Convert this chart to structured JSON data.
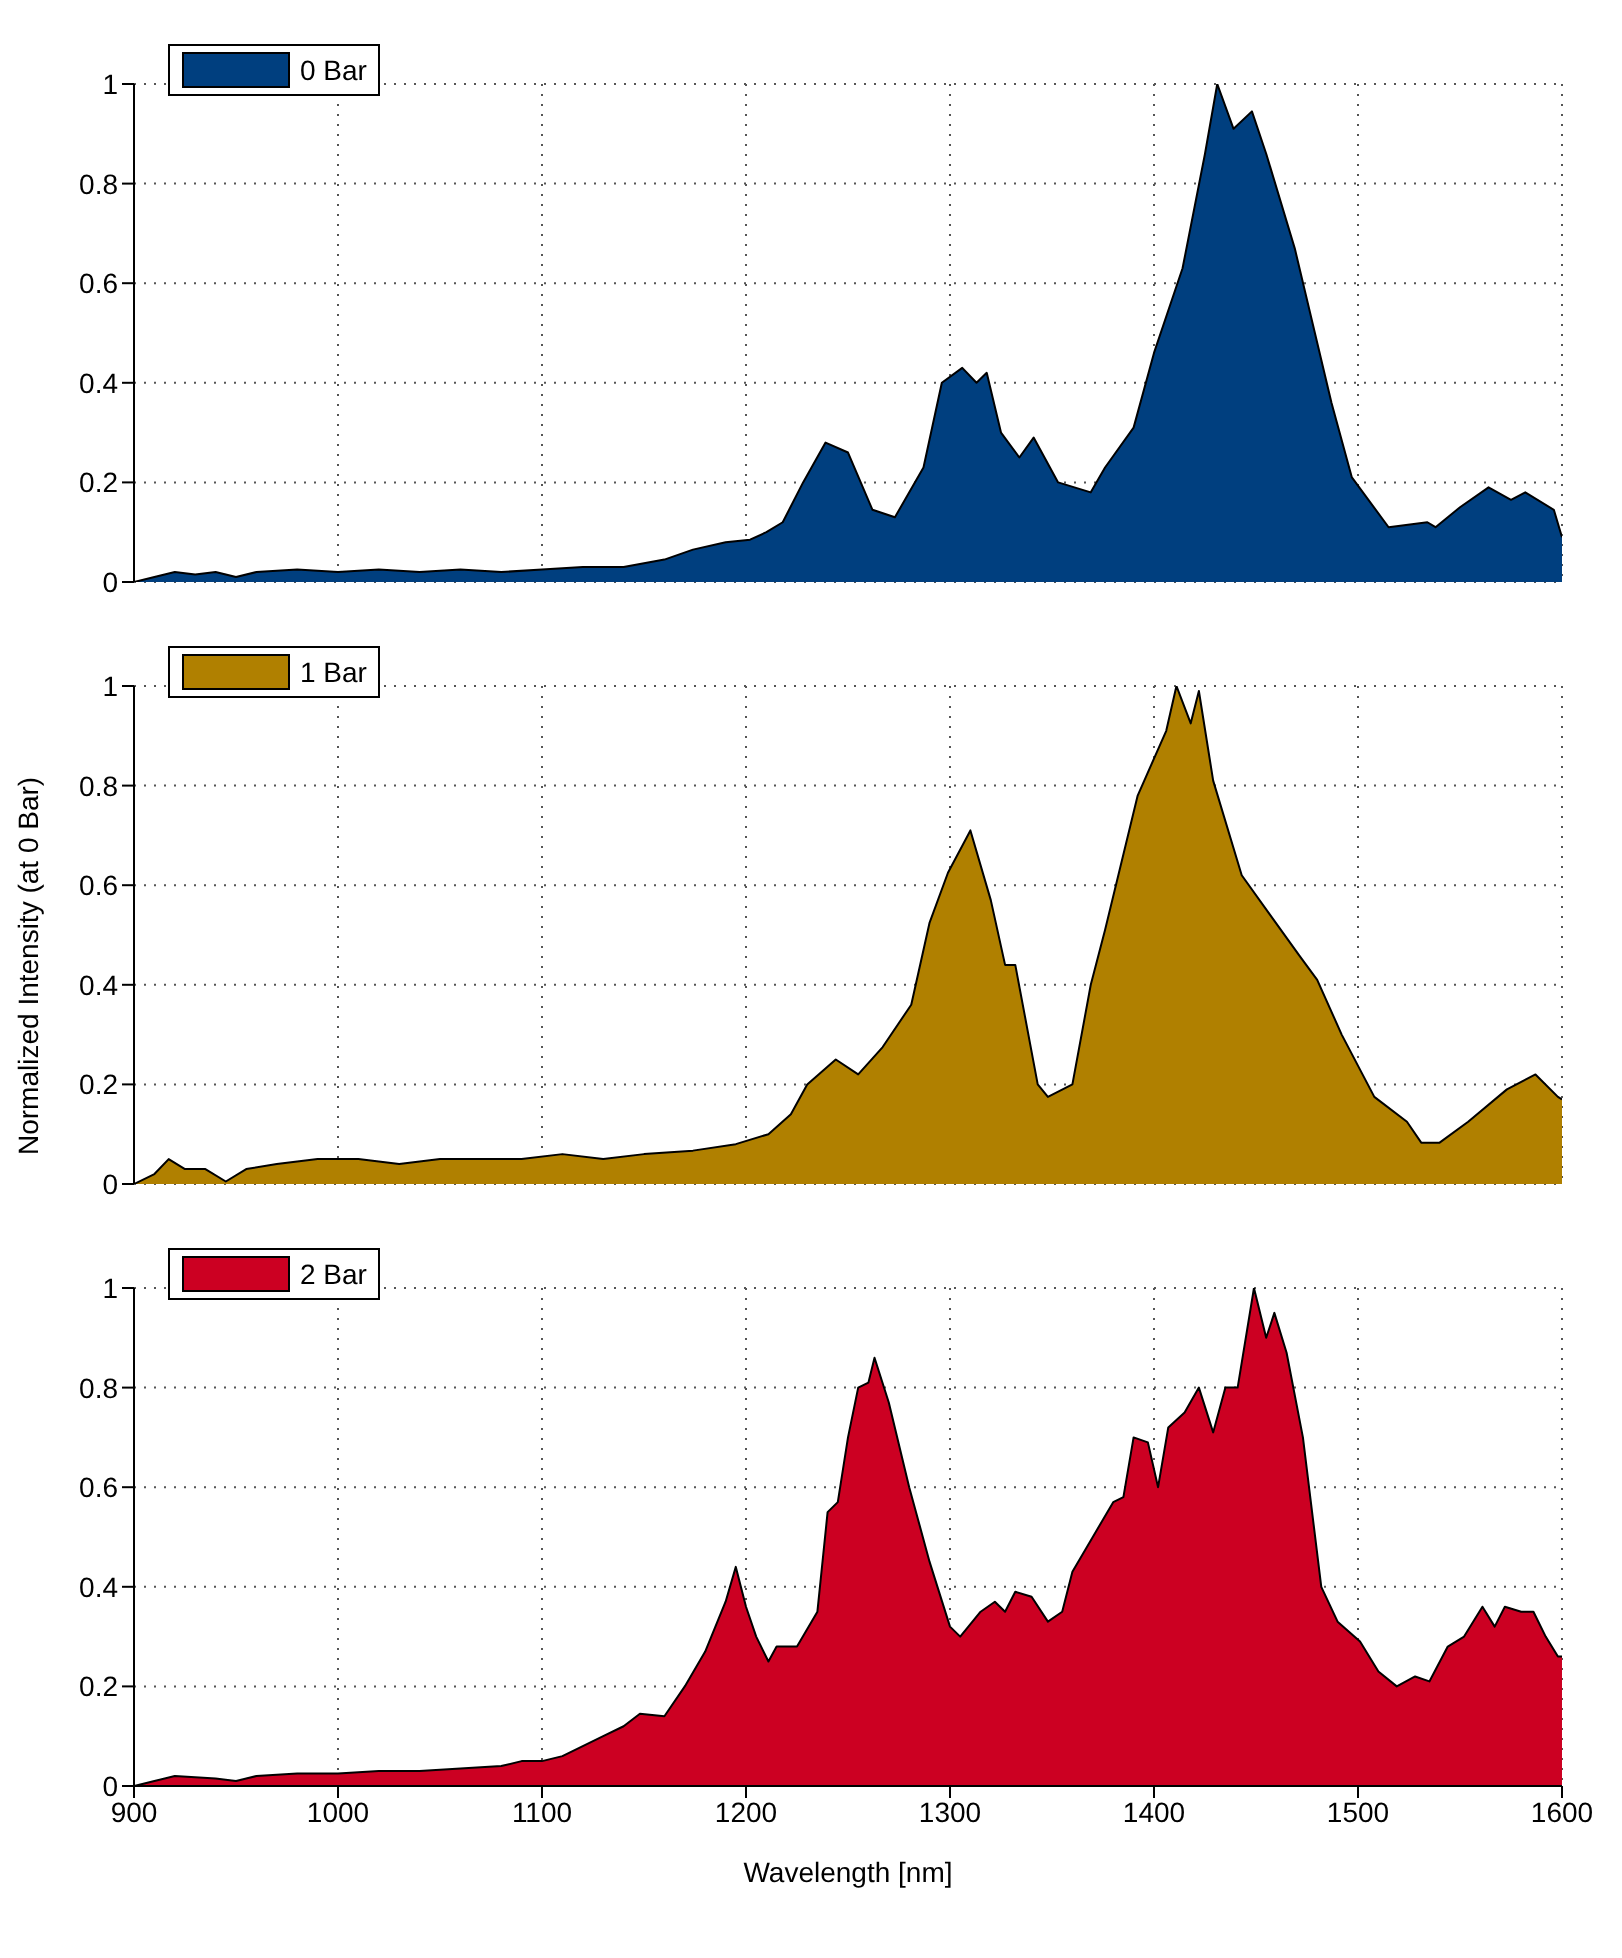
{
  "chart_data": [
    {
      "type": "area",
      "xlim": [
        900,
        1600
      ],
      "xticks": [
        900,
        1000,
        1100,
        1200,
        1300,
        1400,
        1500,
        1600
      ],
      "ylim": [
        0,
        1
      ],
      "yticks": [
        0,
        0.2,
        0.4,
        0.6,
        0.8,
        1
      ],
      "grid": true,
      "legend": "top left",
      "tick_labels": "y",
      "x": [
        900,
        910,
        920,
        930,
        940,
        950,
        960,
        980,
        1000,
        1020,
        1040,
        1060,
        1080,
        1100,
        1120,
        1140,
        1160,
        1174,
        1190,
        1202,
        1210,
        1218,
        1228,
        1239,
        1250,
        1262,
        1273,
        1287,
        1296,
        1306,
        1313,
        1318,
        1325,
        1334,
        1341,
        1353,
        1369,
        1376,
        1390,
        1400,
        1414,
        1425,
        1431,
        1439,
        1448,
        1455,
        1469,
        1487,
        1497,
        1515,
        1534,
        1538,
        1550,
        1564,
        1575,
        1582,
        1596,
        1600
      ],
      "series": [
        {
          "name": "0 Bar",
          "color": "#003f7f",
          "values": [
            0,
            0.01,
            0.02,
            0.015,
            0.02,
            0.01,
            0.02,
            0.025,
            0.02,
            0.025,
            0.02,
            0.025,
            0.02,
            0.025,
            0.03,
            0.03,
            0.045,
            0.065,
            0.08,
            0.085,
            0.1,
            0.12,
            0.2,
            0.28,
            0.26,
            0.145,
            0.13,
            0.23,
            0.4,
            0.43,
            0.4,
            0.42,
            0.3,
            0.25,
            0.29,
            0.2,
            0.18,
            0.23,
            0.31,
            0.46,
            0.63,
            0.86,
            1,
            0.91,
            0.945,
            0.86,
            0.67,
            0.36,
            0.21,
            0.11,
            0.12,
            0.11,
            0.15,
            0.19,
            0.165,
            0.18,
            0.145,
            0.09
          ]
        }
      ]
    },
    {
      "type": "area",
      "xlim": [
        900,
        1600
      ],
      "xticks": [
        900,
        1000,
        1100,
        1200,
        1300,
        1400,
        1500,
        1600
      ],
      "ylim": [
        0,
        1
      ],
      "yticks": [
        0,
        0.2,
        0.4,
        0.6,
        0.8,
        1
      ],
      "grid": true,
      "legend": "top left",
      "tick_labels": "y",
      "ylabel": "Normalized Intensity (at 0 Bar)",
      "x": [
        900,
        910,
        917,
        925,
        935,
        945,
        955,
        970,
        990,
        1010,
        1030,
        1050,
        1070,
        1090,
        1110,
        1130,
        1150,
        1174,
        1195,
        1211,
        1222,
        1230,
        1244,
        1255,
        1267,
        1281,
        1290,
        1299,
        1310,
        1320,
        1327,
        1332,
        1343,
        1348,
        1360,
        1369,
        1376,
        1392,
        1406,
        1411,
        1418,
        1422,
        1429,
        1443,
        1457,
        1471,
        1480,
        1492,
        1508,
        1524,
        1531,
        1540,
        1554,
        1573,
        1587,
        1598,
        1600
      ],
      "series": [
        {
          "name": "1 Bar",
          "color": "#b08000",
          "values": [
            0,
            0.02,
            0.05,
            0.03,
            0.03,
            0.005,
            0.03,
            0.04,
            0.05,
            0.05,
            0.04,
            0.05,
            0.05,
            0.05,
            0.06,
            0.05,
            0.06,
            0.067,
            0.08,
            0.1,
            0.14,
            0.2,
            0.25,
            0.22,
            0.275,
            0.36,
            0.525,
            0.625,
            0.71,
            0.57,
            0.44,
            0.44,
            0.2,
            0.175,
            0.2,
            0.4,
            0.51,
            0.78,
            0.91,
            1,
            0.925,
            0.99,
            0.81,
            0.62,
            0.54,
            0.46,
            0.41,
            0.3,
            0.175,
            0.125,
            0.083,
            0.083,
            0.125,
            0.19,
            0.22,
            0.175,
            0.17
          ]
        }
      ]
    },
    {
      "type": "area",
      "xlim": [
        900,
        1600
      ],
      "xticks": [
        900,
        1000,
        1100,
        1200,
        1300,
        1400,
        1500,
        1600
      ],
      "ylim": [
        0,
        1
      ],
      "yticks": [
        0,
        0.2,
        0.4,
        0.6,
        0.8,
        1
      ],
      "grid": true,
      "legend": "top left",
      "xlabel": "Wavelength [nm]",
      "x": [
        900,
        910,
        920,
        940,
        950,
        960,
        980,
        1000,
        1020,
        1040,
        1060,
        1080,
        1090,
        1100,
        1110,
        1120,
        1130,
        1140,
        1148,
        1160,
        1170,
        1180,
        1190,
        1195,
        1200,
        1205,
        1211,
        1215,
        1225,
        1235,
        1240,
        1245,
        1250,
        1255,
        1260,
        1263,
        1270,
        1280,
        1290,
        1300,
        1305,
        1315,
        1322,
        1327,
        1332,
        1340,
        1348,
        1355,
        1360,
        1370,
        1380,
        1385,
        1390,
        1397,
        1402,
        1407,
        1415,
        1422,
        1429,
        1435,
        1441,
        1449,
        1455,
        1459,
        1465,
        1473,
        1482,
        1490,
        1501,
        1510,
        1519,
        1528,
        1535,
        1544,
        1552,
        1561,
        1567,
        1572,
        1580,
        1586,
        1592,
        1598,
        1600
      ],
      "series": [
        {
          "name": "2 Bar",
          "color": "#cc0022",
          "values": [
            0,
            0.01,
            0.02,
            0.015,
            0.01,
            0.02,
            0.025,
            0.025,
            0.03,
            0.03,
            0.035,
            0.04,
            0.05,
            0.05,
            0.06,
            0.08,
            0.1,
            0.12,
            0.145,
            0.14,
            0.2,
            0.27,
            0.37,
            0.44,
            0.36,
            0.3,
            0.25,
            0.28,
            0.28,
            0.35,
            0.55,
            0.57,
            0.7,
            0.8,
            0.81,
            0.86,
            0.77,
            0.6,
            0.45,
            0.32,
            0.3,
            0.35,
            0.37,
            0.35,
            0.39,
            0.38,
            0.33,
            0.35,
            0.43,
            0.5,
            0.57,
            0.58,
            0.7,
            0.69,
            0.6,
            0.72,
            0.75,
            0.8,
            0.71,
            0.8,
            0.8,
            1,
            0.9,
            0.95,
            0.87,
            0.7,
            0.4,
            0.33,
            0.29,
            0.23,
            0.2,
            0.22,
            0.21,
            0.28,
            0.3,
            0.36,
            0.32,
            0.36,
            0.35,
            0.35,
            0.3,
            0.26,
            0.26
          ]
        }
      ]
    }
  ]
}
